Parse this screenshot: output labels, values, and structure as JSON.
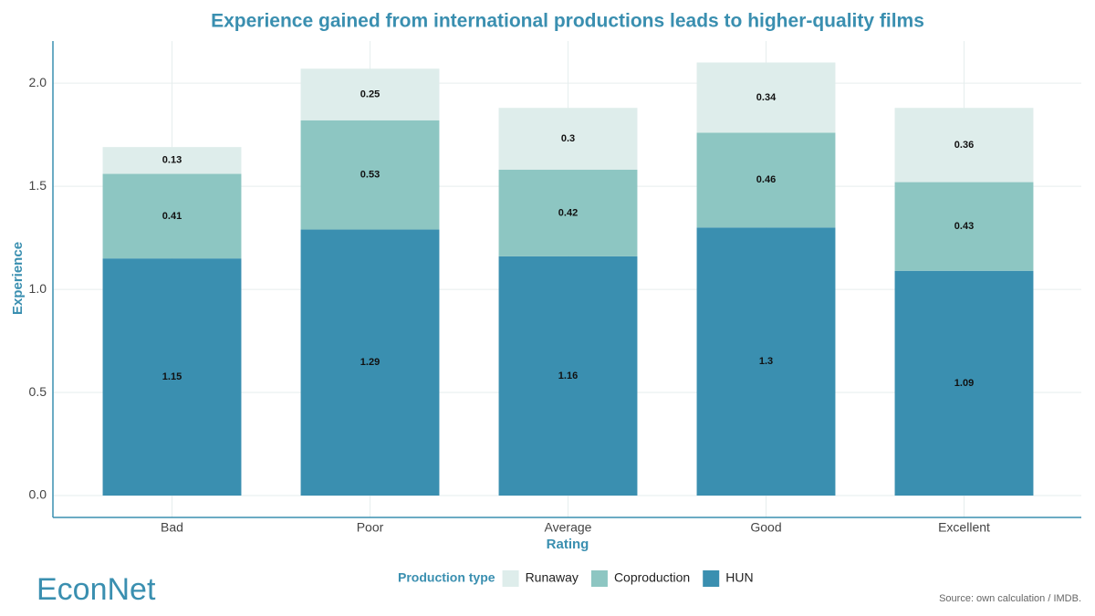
{
  "chart_data": {
    "type": "stacked_bar",
    "title": "Experience gained from international productions leads to higher-quality films",
    "x_label": "Rating",
    "y_label": "Experience",
    "categories": [
      "Bad",
      "Poor",
      "Average",
      "Good",
      "Excellent"
    ],
    "series": [
      {
        "name": "Runaway",
        "color": "#deedeb",
        "values": [
          0.13,
          0.25,
          0.3,
          0.34,
          0.36
        ]
      },
      {
        "name": "Coproduction",
        "color": "#8dc6c2",
        "values": [
          0.41,
          0.53,
          0.42,
          0.46,
          0.43
        ]
      },
      {
        "name": "HUN",
        "color": "#3a8fb0",
        "values": [
          1.15,
          1.29,
          1.16,
          1.3,
          1.09
        ]
      }
    ],
    "ylim": [
      -0.106,
      2.204
    ],
    "yticks": [
      {
        "value": 0,
        "label": "0.0"
      },
      0.5,
      {
        "value": 1,
        "label": "1.0"
      },
      1.5,
      {
        "value": 2,
        "label": "2.0"
      }
    ],
    "grid": true,
    "legend_title": "Production type",
    "legend_position": "bottom",
    "source": "Source: own calculation / IMDB.",
    "logo": "EconNet"
  }
}
